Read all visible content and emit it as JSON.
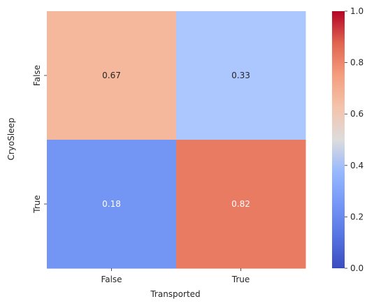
{
  "chart_data": {
    "type": "heatmap",
    "x_categories": [
      "False",
      "True"
    ],
    "y_categories": [
      "False",
      "True"
    ],
    "values": [
      [
        0.67,
        0.33
      ],
      [
        0.18,
        0.82
      ]
    ],
    "annotations": [
      [
        "0.67",
        "0.33"
      ],
      [
        "0.18",
        "0.82"
      ]
    ],
    "xlabel": "Transported",
    "ylabel": "CryoSleep",
    "colormap": "coolwarm",
    "vmin": 0.0,
    "vmax": 1.0,
    "colorbar_ticks": [
      "0.0",
      "0.2",
      "0.4",
      "0.6",
      "0.8",
      "1.0"
    ],
    "cell_colors": [
      [
        "#f6b89c",
        "#abc7fd"
      ],
      [
        "#7396f5",
        "#e97b62"
      ]
    ],
    "annotation_colors": [
      [
        "#262626",
        "#262626"
      ],
      [
        "#ffffff",
        "#ffffff"
      ]
    ]
  }
}
